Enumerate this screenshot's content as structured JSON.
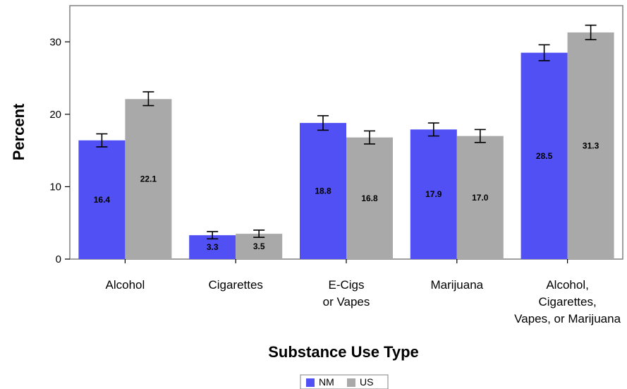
{
  "chart_data": {
    "type": "bar",
    "xlabel": "Substance Use Type",
    "ylabel": "Percent",
    "ylim": [
      0,
      35
    ],
    "yticks": [
      0,
      10,
      20,
      30
    ],
    "grid": false,
    "legend_position": "bottom",
    "categories": [
      [
        "Alcohol"
      ],
      [
        "Cigarettes"
      ],
      [
        "E-Cigs",
        "or Vapes"
      ],
      [
        "Marijuana"
      ],
      [
        "Alcohol,",
        "Cigarettes,",
        "Vapes, or Marijuana"
      ]
    ],
    "series": [
      {
        "name": "NM",
        "color": "#5050f5",
        "values": [
          16.4,
          3.3,
          18.8,
          17.9,
          28.5
        ],
        "labels": [
          "16.4",
          "3.3",
          "18.8",
          "17.9",
          "28.5"
        ],
        "error_low": [
          15.5,
          2.8,
          17.8,
          17.0,
          27.4
        ],
        "error_high": [
          17.3,
          3.8,
          19.8,
          18.8,
          29.6
        ]
      },
      {
        "name": "US",
        "color": "#a9a9a9",
        "values": [
          22.1,
          3.5,
          16.8,
          17.0,
          31.3
        ],
        "labels": [
          "22.1",
          "3.5",
          "16.8",
          "17.0",
          "31.3"
        ],
        "error_low": [
          21.2,
          3.0,
          15.9,
          16.1,
          30.3
        ],
        "error_high": [
          23.1,
          4.0,
          17.7,
          17.9,
          32.3
        ]
      }
    ]
  }
}
